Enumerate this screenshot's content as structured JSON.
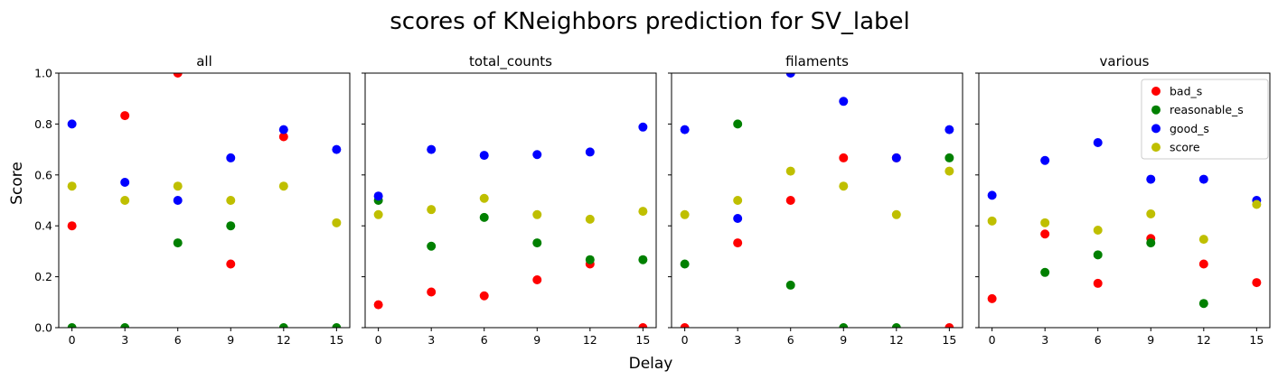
{
  "figure": {
    "title": "scores of KNeighbors prediction for SV_label",
    "xlabel": "Delay",
    "ylabel": "Score"
  },
  "chart_data": {
    "type": "scatter",
    "x": [
      0,
      3,
      6,
      9,
      12,
      15
    ],
    "xticks": [
      "0",
      "3",
      "6",
      "9",
      "12",
      "15"
    ],
    "yticks": [
      "0.0",
      "0.2",
      "0.4",
      "0.6",
      "0.8",
      "1.0"
    ],
    "ylim": [
      0,
      1
    ],
    "xlim": [
      -0.75,
      15.75
    ],
    "sharey": true,
    "grid": false,
    "legend": {
      "panel": 3,
      "placement": "upper right",
      "entries": [
        {
          "name": "bad_s",
          "color": "#ff0000"
        },
        {
          "name": "reasonable_s",
          "color": "#008000"
        },
        {
          "name": "good_s",
          "color": "#0000ff"
        },
        {
          "name": "score",
          "color": "#bfbf00"
        }
      ]
    },
    "panels": [
      {
        "title": "all",
        "series": [
          {
            "name": "bad_s",
            "color": "#ff0000",
            "values": [
              0.4,
              0.833,
              1.0,
              0.25,
              0.75,
              null
            ]
          },
          {
            "name": "reasonable_s",
            "color": "#008000",
            "values": [
              0.0,
              0.0,
              0.333,
              0.4,
              0.0,
              0.0
            ]
          },
          {
            "name": "good_s",
            "color": "#0000ff",
            "values": [
              0.8,
              0.571,
              0.5,
              0.667,
              0.778,
              0.7
            ]
          },
          {
            "name": "score",
            "color": "#bfbf00",
            "values": [
              0.556,
              0.5,
              0.556,
              0.5,
              0.556,
              0.412
            ]
          }
        ]
      },
      {
        "title": "total_counts",
        "series": [
          {
            "name": "bad_s",
            "color": "#ff0000",
            "values": [
              0.09,
              0.14,
              0.125,
              0.188,
              0.25,
              0.0
            ]
          },
          {
            "name": "reasonable_s",
            "color": "#008000",
            "values": [
              0.5,
              0.32,
              0.433,
              0.333,
              0.267,
              0.267
            ]
          },
          {
            "name": "good_s",
            "color": "#0000ff",
            "values": [
              0.517,
              0.7,
              0.677,
              0.68,
              0.69,
              0.788
            ]
          },
          {
            "name": "score",
            "color": "#bfbf00",
            "values": [
              0.444,
              0.464,
              0.508,
              0.444,
              0.426,
              0.457
            ]
          }
        ]
      },
      {
        "title": "filaments",
        "series": [
          {
            "name": "bad_s",
            "color": "#ff0000",
            "values": [
              0.0,
              0.333,
              0.5,
              0.667,
              0.667,
              0.0
            ]
          },
          {
            "name": "reasonable_s",
            "color": "#008000",
            "values": [
              0.25,
              0.8,
              0.167,
              0.0,
              0.0,
              0.667
            ]
          },
          {
            "name": "good_s",
            "color": "#0000ff",
            "values": [
              0.778,
              0.429,
              1.0,
              0.889,
              0.667,
              0.778
            ]
          },
          {
            "name": "score",
            "color": "#bfbf00",
            "values": [
              0.444,
              0.5,
              0.615,
              0.556,
              0.444,
              0.615
            ]
          }
        ]
      },
      {
        "title": "various",
        "series": [
          {
            "name": "bad_s",
            "color": "#ff0000",
            "values": [
              0.114,
              0.368,
              0.174,
              0.35,
              0.25,
              0.177
            ]
          },
          {
            "name": "reasonable_s",
            "color": "#008000",
            "values": [
              null,
              0.217,
              0.286,
              0.333,
              0.095,
              null
            ]
          },
          {
            "name": "good_s",
            "color": "#0000ff",
            "values": [
              0.52,
              0.657,
              0.727,
              0.583,
              0.583,
              0.5
            ]
          },
          {
            "name": "score",
            "color": "#bfbf00",
            "values": [
              0.419,
              0.412,
              0.383,
              0.447,
              0.347,
              0.484
            ]
          }
        ]
      }
    ]
  }
}
